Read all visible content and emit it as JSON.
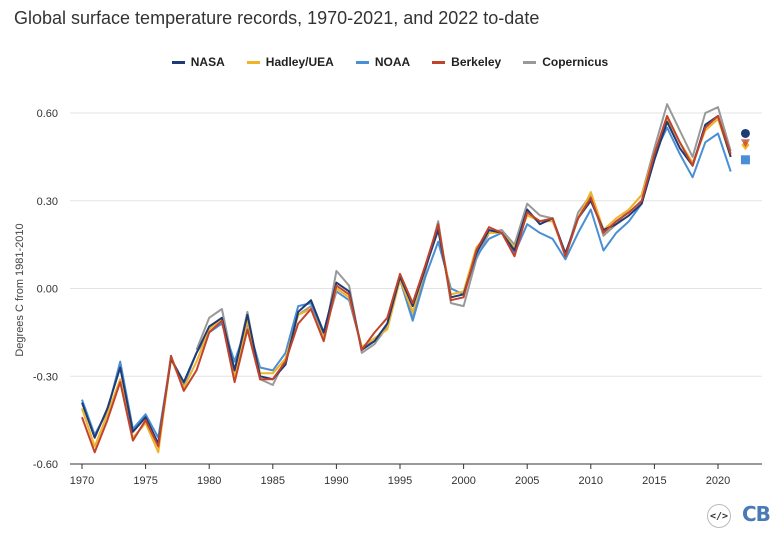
{
  "chart_data": {
    "type": "line",
    "title": "Global surface temperature records, 1970-2021, and 2022 to-date",
    "ylabel": "Degrees C from 1981-2010",
    "xlabel": "",
    "xlim": [
      1969,
      2023
    ],
    "ylim": [
      -0.6,
      0.75
    ],
    "yticks": [
      -0.6,
      -0.3,
      0.0,
      0.3,
      0.6
    ],
    "ytick_labels": [
      "-0.60",
      "-0.30",
      "0.00",
      "0.30",
      "0.60"
    ],
    "xticks": [
      1970,
      1975,
      1980,
      1985,
      1990,
      1995,
      2000,
      2005,
      2010,
      2015,
      2020
    ],
    "xtick_labels": [
      "1970",
      "1975",
      "1980",
      "1985",
      "1990",
      "1995",
      "2000",
      "2005",
      "2010",
      "2015",
      "2020"
    ],
    "grid": "horizontal",
    "legend_position": "top-center",
    "x": [
      1970,
      1971,
      1972,
      1973,
      1974,
      1975,
      1976,
      1977,
      1978,
      1979,
      1980,
      1981,
      1982,
      1983,
      1984,
      1985,
      1986,
      1987,
      1988,
      1989,
      1990,
      1991,
      1992,
      1993,
      1994,
      1995,
      1996,
      1997,
      1998,
      1999,
      2000,
      2001,
      2002,
      2003,
      2004,
      2005,
      2006,
      2007,
      2008,
      2009,
      2010,
      2011,
      2012,
      2013,
      2014,
      2015,
      2016,
      2017,
      2018,
      2019,
      2020,
      2021
    ],
    "series": [
      {
        "name": "NASA",
        "color": "#1f3b73",
        "values": [
          -0.39,
          -0.51,
          -0.41,
          -0.27,
          -0.49,
          -0.44,
          -0.53,
          -0.24,
          -0.32,
          -0.22,
          -0.13,
          -0.1,
          -0.28,
          -0.09,
          -0.3,
          -0.31,
          -0.26,
          -0.08,
          -0.04,
          -0.15,
          0.02,
          -0.01,
          -0.21,
          -0.18,
          -0.12,
          0.04,
          -0.06,
          0.07,
          0.2,
          -0.03,
          -0.02,
          0.12,
          0.2,
          0.19,
          0.13,
          0.27,
          0.22,
          0.24,
          0.12,
          0.24,
          0.3,
          0.2,
          0.22,
          0.25,
          0.29,
          0.44,
          0.57,
          0.48,
          0.42,
          0.56,
          0.59,
          0.45
        ],
        "marker_2022": 0.53,
        "marker_shape": "circle"
      },
      {
        "name": "Hadley/UEA",
        "color": "#f0b429",
        "values": [
          -0.41,
          -0.54,
          -0.43,
          -0.31,
          -0.51,
          -0.46,
          -0.56,
          -0.24,
          -0.34,
          -0.25,
          -0.14,
          -0.1,
          -0.3,
          -0.11,
          -0.29,
          -0.29,
          -0.24,
          -0.09,
          -0.07,
          -0.17,
          0.0,
          -0.03,
          -0.2,
          -0.17,
          -0.14,
          0.03,
          -0.08,
          0.07,
          0.21,
          -0.02,
          -0.01,
          0.14,
          0.19,
          0.19,
          0.14,
          0.25,
          0.23,
          0.23,
          0.12,
          0.24,
          0.33,
          0.2,
          0.24,
          0.27,
          0.32,
          0.46,
          0.58,
          0.5,
          0.43,
          0.54,
          0.58,
          0.45
        ],
        "marker_2022": 0.49,
        "marker_shape": "diamond"
      },
      {
        "name": "NOAA",
        "color": "#4a8fd4",
        "values": [
          -0.38,
          -0.5,
          -0.42,
          -0.25,
          -0.48,
          -0.43,
          -0.51,
          -0.24,
          -0.33,
          -0.22,
          -0.15,
          -0.12,
          -0.25,
          -0.12,
          -0.27,
          -0.28,
          -0.22,
          -0.06,
          -0.05,
          -0.16,
          -0.01,
          -0.04,
          -0.2,
          -0.18,
          -0.12,
          0.03,
          -0.11,
          0.04,
          0.16,
          0.0,
          -0.02,
          0.11,
          0.17,
          0.19,
          0.12,
          0.22,
          0.19,
          0.17,
          0.1,
          0.19,
          0.27,
          0.13,
          0.19,
          0.23,
          0.29,
          0.46,
          0.55,
          0.46,
          0.38,
          0.5,
          0.53,
          0.4
        ],
        "marker_2022": 0.44,
        "marker_shape": "square"
      },
      {
        "name": "Berkeley",
        "color": "#c1432c",
        "values": [
          -0.44,
          -0.56,
          -0.45,
          -0.32,
          -0.52,
          -0.45,
          -0.54,
          -0.23,
          -0.35,
          -0.28,
          -0.15,
          -0.11,
          -0.32,
          -0.14,
          -0.31,
          -0.31,
          -0.25,
          -0.12,
          -0.07,
          -0.18,
          0.01,
          -0.02,
          -0.21,
          -0.15,
          -0.1,
          0.05,
          -0.05,
          0.08,
          0.22,
          -0.04,
          -0.03,
          0.13,
          0.21,
          0.19,
          0.11,
          0.26,
          0.23,
          0.24,
          0.11,
          0.24,
          0.31,
          0.19,
          0.23,
          0.26,
          0.3,
          0.46,
          0.59,
          0.5,
          0.42,
          0.55,
          0.59,
          0.46
        ],
        "marker_2022": 0.5,
        "marker_shape": "triangle"
      },
      {
        "name": "Copernicus",
        "color": "#999999",
        "values": [
          null,
          null,
          null,
          null,
          null,
          null,
          null,
          null,
          null,
          -0.21,
          -0.1,
          -0.07,
          -0.28,
          -0.08,
          -0.31,
          -0.33,
          -0.24,
          -0.09,
          -0.06,
          -0.18,
          0.06,
          0.01,
          -0.22,
          -0.19,
          -0.13,
          0.04,
          -0.1,
          0.06,
          0.23,
          -0.05,
          -0.06,
          0.1,
          0.19,
          0.2,
          0.15,
          0.29,
          0.25,
          0.24,
          0.11,
          0.26,
          0.32,
          0.18,
          0.22,
          0.27,
          0.32,
          0.48,
          0.63,
          0.54,
          0.45,
          0.6,
          0.62,
          0.47
        ],
        "marker_2022": null,
        "marker_shape": null
      }
    ]
  },
  "footer": {
    "embed_icon": "</>",
    "logo": "CB"
  }
}
